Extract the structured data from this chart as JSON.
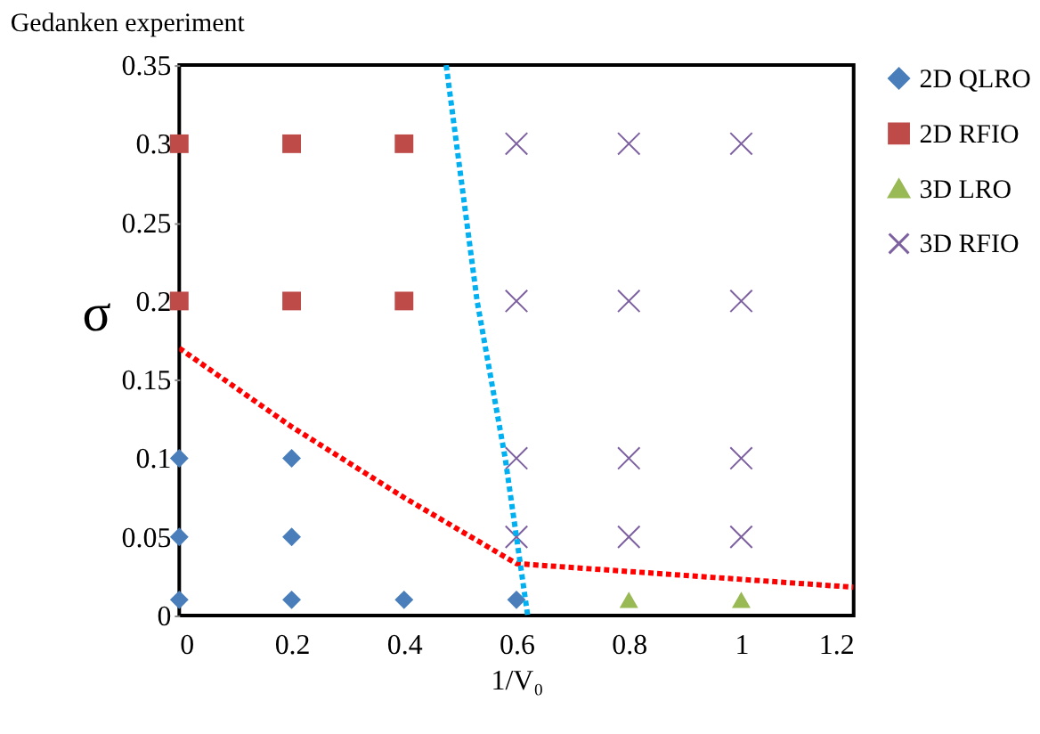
{
  "chart_data": {
    "type": "scatter",
    "title": "Gedanken experiment",
    "xlabel": "1/V₀",
    "ylabel": "σ",
    "xlim": [
      0,
      1.2
    ],
    "xticks": [
      0,
      0.2,
      0.4,
      0.6,
      0.8,
      1,
      1.2
    ],
    "ylim": [
      0,
      0.35
    ],
    "yticks": [
      0,
      0.05,
      0.1,
      0.15,
      0.2,
      0.25,
      0.3,
      0.35
    ],
    "grid": false,
    "legend": "right",
    "series": [
      {
        "name": "2D QLRO",
        "color": "#4a7ebb",
        "marker": "diamond",
        "x": [
          0,
          0,
          0,
          0.2,
          0.2,
          0.2,
          0.4,
          0.6
        ],
        "values": [
          0.01,
          0.05,
          0.1,
          0.01,
          0.05,
          0.1,
          0.01,
          0.01
        ]
      },
      {
        "name": "2D RFIO",
        "color": "#be4b48",
        "marker": "square",
        "x": [
          0,
          0,
          0.2,
          0.2,
          0.4,
          0.4
        ],
        "values": [
          0.2,
          0.3,
          0.2,
          0.3,
          0.2,
          0.3
        ]
      },
      {
        "name": "3D LRO",
        "color": "#98b954",
        "marker": "triangle",
        "x": [
          0.8,
          1
        ],
        "values": [
          0.01,
          0.01
        ]
      },
      {
        "name": "3D RFIO",
        "color": "#7d60a0",
        "marker": "cross",
        "x": [
          0.6,
          0.6,
          0.6,
          0.6,
          0.8,
          0.8,
          0.8,
          0.8,
          1,
          1,
          1,
          1
        ],
        "values": [
          0.05,
          0.1,
          0.2,
          0.3,
          0.05,
          0.1,
          0.2,
          0.3,
          0.05,
          0.1,
          0.2,
          0.3
        ]
      },
      {
        "type": "line",
        "color": "#ff0000",
        "line_style": "dotted",
        "marker": "none",
        "x": [
          0,
          0.2,
          0.4,
          0.6,
          1,
          1.2
        ],
        "values": [
          0.17,
          0.12,
          0.075,
          0.033,
          0.023,
          0.018
        ]
      },
      {
        "type": "line",
        "color": "#00b0f0",
        "line_style": "dotted",
        "marker": "none",
        "x": [
          0.475,
          0.53,
          0.58,
          0.62
        ],
        "values": [
          0.35,
          0.2,
          0.1,
          0
        ]
      }
    ]
  }
}
